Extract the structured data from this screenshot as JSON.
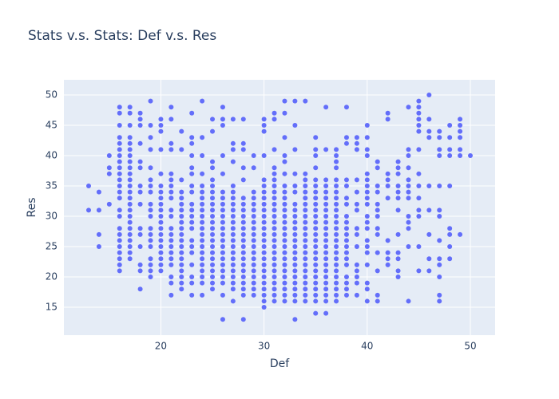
{
  "chart_data": {
    "type": "scatter",
    "title": "Stats v.s. Stats: Def v.s. Res",
    "x_label": "Def",
    "y_label": "Res",
    "color": "#636efa",
    "grid": true,
    "xlim": [
      10.6,
      52.4
    ],
    "ylim": [
      10.4,
      52.5
    ],
    "xticks": [
      20,
      30,
      40,
      50
    ],
    "yticks": [
      15,
      20,
      25,
      30,
      35,
      40,
      45,
      50
    ],
    "x": [
      13,
      13,
      14,
      14,
      14,
      14,
      15,
      15,
      15,
      15,
      16,
      16,
      16,
      16,
      16,
      16,
      16,
      16,
      16,
      16,
      16,
      16,
      16,
      16,
      16,
      16,
      16,
      16,
      16,
      16,
      16,
      16,
      16,
      16,
      17,
      17,
      17,
      17,
      17,
      17,
      17,
      17,
      17,
      17,
      17,
      17,
      17,
      17,
      17,
      17,
      17,
      17,
      17,
      17,
      17,
      17,
      17,
      17,
      18,
      18,
      18,
      18,
      18,
      18,
      18,
      18,
      18,
      18,
      18,
      18,
      18,
      18,
      18,
      19,
      19,
      19,
      19,
      19,
      19,
      19,
      19,
      19,
      19,
      19,
      19,
      19,
      19,
      19,
      19,
      19,
      19,
      19,
      20,
      20,
      20,
      20,
      20,
      20,
      20,
      20,
      20,
      20,
      20,
      20,
      20,
      20,
      20,
      20,
      20,
      20,
      20,
      20,
      21,
      21,
      21,
      21,
      21,
      21,
      21,
      21,
      21,
      21,
      21,
      21,
      21,
      21,
      21,
      21,
      21,
      21,
      21,
      21,
      21,
      22,
      22,
      22,
      22,
      22,
      22,
      22,
      22,
      22,
      22,
      22,
      22,
      22,
      22,
      22,
      22,
      22,
      22,
      22,
      22,
      23,
      23,
      23,
      23,
      23,
      23,
      23,
      23,
      23,
      23,
      23,
      23,
      23,
      23,
      23,
      23,
      23,
      23,
      23,
      23,
      24,
      24,
      24,
      24,
      24,
      24,
      24,
      24,
      24,
      24,
      24,
      24,
      24,
      24,
      24,
      24,
      24,
      24,
      24,
      24,
      24,
      24,
      25,
      25,
      25,
      25,
      25,
      25,
      25,
      25,
      25,
      25,
      25,
      25,
      25,
      25,
      25,
      25,
      25,
      25,
      25,
      25,
      25,
      25,
      25,
      26,
      26,
      26,
      26,
      26,
      26,
      26,
      26,
      26,
      26,
      26,
      26,
      26,
      26,
      26,
      26,
      26,
      26,
      26,
      26,
      26,
      26,
      26,
      27,
      27,
      27,
      27,
      27,
      27,
      27,
      27,
      27,
      27,
      27,
      27,
      27,
      27,
      27,
      27,
      27,
      27,
      27,
      27,
      27,
      27,
      27,
      28,
      28,
      28,
      28,
      28,
      28,
      28,
      28,
      28,
      28,
      28,
      28,
      28,
      28,
      28,
      28,
      28,
      28,
      28,
      28,
      28,
      28,
      28,
      29,
      29,
      29,
      29,
      29,
      29,
      29,
      29,
      29,
      29,
      29,
      29,
      29,
      29,
      29,
      29,
      29,
      29,
      29,
      29,
      30,
      30,
      30,
      30,
      30,
      30,
      30,
      30,
      30,
      30,
      30,
      30,
      30,
      30,
      30,
      30,
      30,
      30,
      30,
      30,
      30,
      30,
      30,
      30,
      30,
      30,
      31,
      31,
      31,
      31,
      31,
      31,
      31,
      31,
      31,
      31,
      31,
      31,
      31,
      31,
      31,
      31,
      31,
      31,
      31,
      31,
      31,
      31,
      31,
      31,
      31,
      31,
      32,
      32,
      32,
      32,
      32,
      32,
      32,
      32,
      32,
      32,
      32,
      32,
      32,
      32,
      32,
      32,
      32,
      32,
      32,
      32,
      32,
      32,
      32,
      32,
      32,
      32,
      33,
      33,
      33,
      33,
      33,
      33,
      33,
      33,
      33,
      33,
      33,
      33,
      33,
      33,
      33,
      33,
      33,
      33,
      33,
      33,
      33,
      33,
      33,
      33,
      34,
      34,
      34,
      34,
      34,
      34,
      34,
      34,
      34,
      34,
      34,
      34,
      34,
      34,
      34,
      34,
      34,
      34,
      34,
      34,
      34,
      34,
      34,
      35,
      35,
      35,
      35,
      35,
      35,
      35,
      35,
      35,
      35,
      35,
      35,
      35,
      35,
      35,
      35,
      35,
      35,
      35,
      35,
      35,
      35,
      35,
      35,
      35,
      35,
      36,
      36,
      36,
      36,
      36,
      36,
      36,
      36,
      36,
      36,
      36,
      36,
      36,
      36,
      36,
      36,
      36,
      36,
      36,
      36,
      36,
      36,
      36,
      36,
      37,
      37,
      37,
      37,
      37,
      37,
      37,
      37,
      37,
      37,
      37,
      37,
      37,
      37,
      37,
      37,
      37,
      37,
      37,
      37,
      37,
      37,
      37,
      37,
      37,
      38,
      38,
      38,
      38,
      38,
      38,
      38,
      38,
      38,
      38,
      38,
      38,
      38,
      38,
      38,
      38,
      38,
      38,
      38,
      38,
      39,
      39,
      39,
      39,
      39,
      39,
      39,
      39,
      39,
      39,
      39,
      39,
      39,
      39,
      39,
      40,
      40,
      40,
      40,
      40,
      40,
      40,
      40,
      40,
      40,
      40,
      40,
      40,
      40,
      40,
      40,
      40,
      40,
      40,
      40,
      41,
      41,
      41,
      41,
      41,
      41,
      41,
      41,
      41,
      41,
      41,
      41,
      41,
      42,
      42,
      42,
      42,
      42,
      42,
      42,
      42,
      42,
      42,
      43,
      43,
      43,
      43,
      43,
      43,
      43,
      43,
      43,
      43,
      43,
      43,
      44,
      44,
      44,
      44,
      44,
      44,
      44,
      44,
      44,
      44,
      44,
      44,
      44,
      45,
      45,
      45,
      45,
      45,
      45,
      45,
      45,
      45,
      45,
      45,
      45,
      45,
      45,
      46,
      46,
      46,
      46,
      46,
      46,
      46,
      46,
      46,
      47,
      47,
      47,
      47,
      47,
      47,
      47,
      47,
      47,
      47,
      47,
      47,
      47,
      48,
      48,
      48,
      48,
      48,
      48,
      48,
      48,
      48,
      49,
      49,
      49,
      49,
      49,
      49,
      49,
      50
    ],
    "y": [
      31,
      35,
      25,
      27,
      31,
      34,
      32,
      37,
      38,
      40,
      21,
      22,
      23,
      24,
      25,
      26,
      27,
      28,
      30,
      31,
      33,
      34,
      35,
      36,
      37,
      38,
      39,
      40,
      41,
      42,
      43,
      45,
      47,
      48,
      23,
      24,
      25,
      26,
      27,
      28,
      29,
      30,
      31,
      32,
      33,
      34,
      35,
      36,
      37,
      38,
      39,
      40,
      41,
      42,
      43,
      45,
      47,
      48,
      18,
      21,
      22,
      25,
      27,
      28,
      32,
      34,
      35,
      38,
      39,
      42,
      45,
      46,
      47,
      20,
      21,
      22,
      23,
      25,
      26,
      27,
      28,
      30,
      31,
      32,
      34,
      35,
      36,
      38,
      41,
      43,
      45,
      49,
      21,
      22,
      23,
      24,
      25,
      26,
      27,
      28,
      29,
      30,
      31,
      32,
      33,
      34,
      35,
      37,
      41,
      44,
      45,
      46,
      17,
      19,
      20,
      22,
      23,
      24,
      25,
      26,
      27,
      28,
      30,
      31,
      33,
      34,
      35,
      36,
      37,
      41,
      42,
      46,
      48,
      18,
      19,
      20,
      21,
      22,
      23,
      24,
      25,
      26,
      27,
      28,
      29,
      30,
      31,
      32,
      33,
      34,
      36,
      41,
      44,
      17,
      19,
      20,
      22,
      24,
      25,
      26,
      28,
      29,
      30,
      31,
      32,
      34,
      35,
      37,
      38,
      40,
      42,
      43,
      47,
      17,
      19,
      20,
      21,
      22,
      23,
      24,
      25,
      26,
      27,
      28,
      29,
      30,
      31,
      32,
      33,
      34,
      35,
      37,
      40,
      43,
      49,
      18,
      19,
      20,
      21,
      22,
      23,
      24,
      25,
      26,
      27,
      28,
      29,
      30,
      31,
      32,
      33,
      34,
      35,
      36,
      38,
      39,
      44,
      46,
      13,
      17,
      19,
      20,
      21,
      22,
      23,
      24,
      25,
      26,
      27,
      28,
      29,
      30,
      31,
      32,
      33,
      34,
      37,
      40,
      45,
      46,
      48,
      16,
      18,
      19,
      20,
      21,
      22,
      23,
      24,
      25,
      26,
      27,
      28,
      29,
      30,
      31,
      32,
      33,
      34,
      35,
      39,
      41,
      42,
      46,
      13,
      17,
      18,
      19,
      20,
      21,
      22,
      23,
      24,
      25,
      26,
      27,
      28,
      29,
      30,
      31,
      32,
      33,
      36,
      38,
      41,
      42,
      46,
      17,
      18,
      19,
      20,
      21,
      22,
      23,
      24,
      25,
      26,
      27,
      28,
      29,
      30,
      31,
      32,
      33,
      34,
      38,
      40,
      15,
      16,
      17,
      18,
      19,
      20,
      21,
      22,
      23,
      24,
      25,
      26,
      27,
      28,
      29,
      30,
      31,
      32,
      33,
      34,
      35,
      36,
      40,
      44,
      45,
      46,
      16,
      17,
      18,
      19,
      20,
      21,
      22,
      23,
      24,
      25,
      26,
      27,
      28,
      29,
      30,
      31,
      32,
      33,
      34,
      35,
      36,
      37,
      38,
      41,
      46,
      47,
      16,
      17,
      18,
      19,
      20,
      21,
      22,
      23,
      24,
      25,
      26,
      27,
      28,
      29,
      30,
      31,
      32,
      33,
      34,
      35,
      37,
      39,
      40,
      43,
      47,
      49,
      13,
      16,
      17,
      18,
      19,
      20,
      21,
      22,
      23,
      24,
      25,
      26,
      27,
      28,
      29,
      30,
      31,
      32,
      34,
      35,
      37,
      41,
      45,
      49,
      16,
      17,
      18,
      19,
      20,
      21,
      22,
      23,
      24,
      25,
      26,
      27,
      28,
      29,
      30,
      31,
      32,
      33,
      34,
      35,
      36,
      37,
      49,
      14,
      16,
      17,
      18,
      19,
      20,
      21,
      22,
      23,
      24,
      25,
      26,
      27,
      28,
      29,
      30,
      31,
      32,
      33,
      34,
      35,
      36,
      38,
      40,
      41,
      43,
      14,
      16,
      17,
      18,
      19,
      20,
      21,
      22,
      23,
      24,
      25,
      26,
      27,
      28,
      29,
      30,
      31,
      32,
      33,
      34,
      35,
      36,
      41,
      48,
      16,
      17,
      18,
      19,
      20,
      21,
      22,
      23,
      24,
      25,
      26,
      27,
      28,
      29,
      30,
      31,
      32,
      33,
      34,
      35,
      36,
      38,
      39,
      40,
      41,
      17,
      18,
      19,
      20,
      22,
      23,
      24,
      25,
      26,
      27,
      28,
      29,
      30,
      32,
      33,
      35,
      36,
      42,
      43,
      48,
      17,
      19,
      20,
      21,
      22,
      25,
      27,
      28,
      31,
      32,
      34,
      36,
      41,
      42,
      43,
      16,
      18,
      19,
      22,
      24,
      25,
      26,
      28,
      29,
      30,
      32,
      33,
      34,
      35,
      36,
      37,
      40,
      41,
      43,
      45,
      16,
      17,
      21,
      24,
      27,
      28,
      30,
      31,
      32,
      34,
      35,
      38,
      39,
      22,
      23,
      24,
      26,
      33,
      35,
      36,
      37,
      46,
      47,
      20,
      21,
      23,
      24,
      27,
      31,
      33,
      34,
      35,
      37,
      38,
      39,
      16,
      25,
      28,
      29,
      30,
      33,
      34,
      35,
      36,
      38,
      40,
      41,
      48,
      21,
      25,
      30,
      31,
      33,
      35,
      37,
      41,
      44,
      45,
      46,
      47,
      48,
      49,
      21,
      23,
      27,
      31,
      35,
      43,
      44,
      46,
      50,
      16,
      17,
      20,
      22,
      23,
      26,
      30,
      31,
      35,
      40,
      41,
      43,
      44,
      23,
      25,
      27,
      28,
      35,
      40,
      41,
      43,
      45,
      27,
      40,
      41,
      43,
      44,
      45,
      46,
      40
    ]
  }
}
